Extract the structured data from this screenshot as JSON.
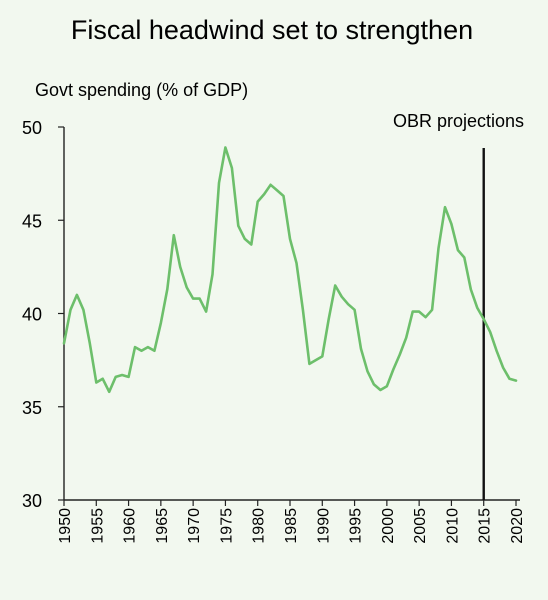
{
  "chart_data": {
    "type": "line",
    "title": "Fiscal headwind set to strengthen",
    "ylabel": "Govt spending (% of GDP)",
    "xlabel": "",
    "ylim": [
      30,
      50
    ],
    "xlim": [
      1950,
      2020
    ],
    "y_ticks": [
      "30",
      "35",
      "40",
      "45",
      "50"
    ],
    "x_ticks": [
      "1950",
      "1955",
      "1960",
      "1965",
      "1970",
      "1975",
      "1980",
      "1985",
      "1990",
      "1995",
      "2000",
      "2005",
      "2010",
      "2015",
      "2020"
    ],
    "grid": false,
    "line_color": "#6dbf6b",
    "annotation": {
      "label": "OBR projections",
      "x": 2015
    },
    "series": [
      {
        "x": [
          1950,
          1951,
          1952,
          1953,
          1954,
          1955,
          1956,
          1957,
          1958,
          1959,
          1960,
          1961,
          1962,
          1963,
          1964,
          1965,
          1966,
          1967,
          1968,
          1969,
          1970,
          1971,
          1972,
          1973,
          1974,
          1975,
          1976,
          1977,
          1978,
          1979,
          1980,
          1981,
          1982,
          1983,
          1984,
          1985,
          1986,
          1987,
          1988,
          1989,
          1990,
          1991,
          1992,
          1993,
          1994,
          1995,
          1996,
          1997,
          1998,
          1999,
          2000,
          2001,
          2002,
          2003,
          2004,
          2005,
          2006,
          2007,
          2008,
          2009,
          2010,
          2011,
          2012,
          2013,
          2014,
          2015,
          2016,
          2017,
          2018,
          2019,
          2020
        ],
        "values": [
          38.4,
          40.2,
          41.0,
          40.2,
          38.4,
          36.3,
          36.5,
          35.8,
          36.6,
          36.7,
          36.6,
          38.2,
          38.0,
          38.2,
          38.0,
          39.5,
          41.3,
          44.2,
          42.5,
          41.4,
          40.8,
          40.8,
          40.1,
          42.1,
          47.0,
          48.9,
          47.8,
          44.7,
          44.0,
          43.7,
          46.0,
          46.4,
          46.9,
          46.6,
          46.3,
          44.0,
          42.7,
          40.2,
          37.3,
          37.5,
          37.7,
          39.7,
          41.5,
          40.9,
          40.5,
          40.2,
          38.1,
          36.9,
          36.2,
          35.9,
          36.1,
          37.0,
          37.8,
          38.7,
          40.1,
          40.1,
          39.8,
          40.2,
          43.5,
          45.7,
          44.8,
          43.4,
          43.0,
          41.3,
          40.3,
          39.7,
          39.0,
          38.0,
          37.1,
          36.5,
          36.4
        ]
      }
    ]
  }
}
